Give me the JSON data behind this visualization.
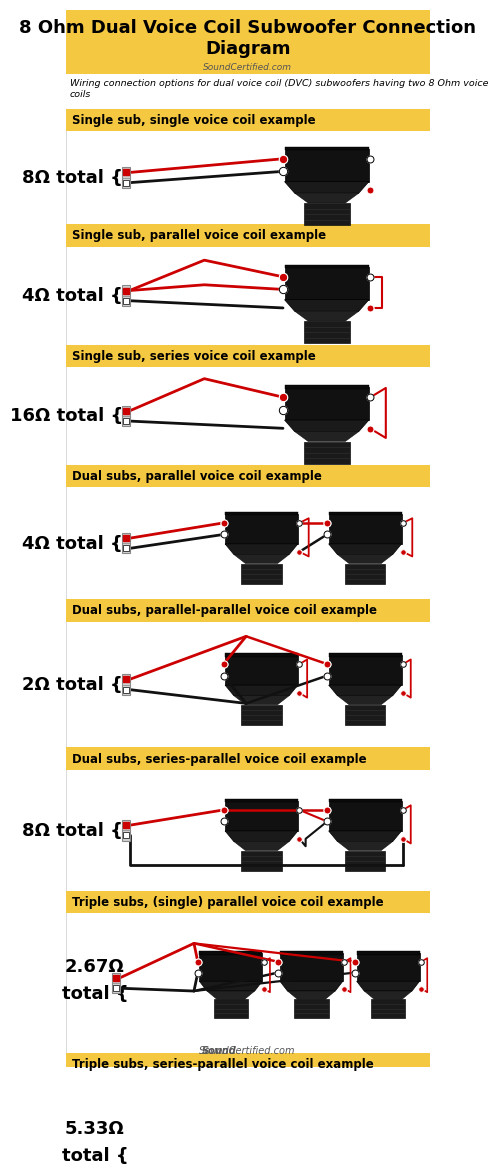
{
  "title": "8 Ohm Dual Voice Coil Subwoofer Connection\nDiagram",
  "subtitle": "SoundCertified.com",
  "description": "Wiring connection options for dual voice coil (DVC) subwoofers having two 8 Ohm voice\ncoils",
  "bg_color": "#ffffff",
  "header_bg": "#f5c842",
  "section_label_bg": "#f5c842",
  "sections": [
    {
      "label": "Single sub, single voice coil example",
      "impedance": "8Ω total {",
      "imp_multiline": false,
      "num_subs": 1,
      "wiring": "single"
    },
    {
      "label": "Single sub, parallel voice coil example",
      "impedance": "4Ω total {",
      "imp_multiline": false,
      "num_subs": 1,
      "wiring": "parallel"
    },
    {
      "label": "Single sub, series voice coil example",
      "impedance": "16Ω total {",
      "imp_multiline": false,
      "num_subs": 1,
      "wiring": "series"
    },
    {
      "label": "Dual subs, parallel voice coil example",
      "impedance": "4Ω total {",
      "imp_multiline": false,
      "num_subs": 2,
      "wiring": "dual_parallel"
    },
    {
      "label": "Dual subs, parallel-parallel voice coil example",
      "impedance": "2Ω total {",
      "imp_multiline": false,
      "num_subs": 2,
      "wiring": "dual_parallel_parallel"
    },
    {
      "label": "Dual subs, series-parallel voice coil example",
      "impedance": "8Ω total {",
      "imp_multiline": false,
      "num_subs": 2,
      "wiring": "dual_series_parallel"
    },
    {
      "label": "Triple subs, (single) parallel voice coil example",
      "impedance": "2.67Ω\ntotal {",
      "imp_multiline": true,
      "num_subs": 3,
      "wiring": "triple_parallel"
    },
    {
      "label": "Triple subs, series-parallel voice coil example",
      "impedance": "5.33Ω\ntotal {",
      "imp_multiline": true,
      "num_subs": 3,
      "wiring": "triple_series_parallel"
    }
  ]
}
